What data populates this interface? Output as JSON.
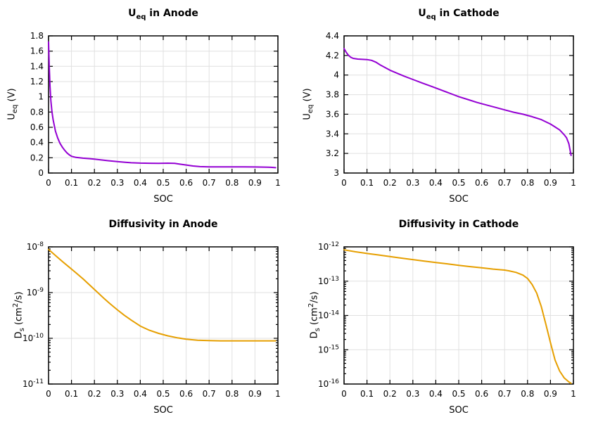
{
  "page": {
    "background": "#ffffff",
    "text_color": "#000000"
  },
  "style": {
    "grid_color": "#e0e0e0",
    "axis_color": "#000000",
    "purple": "#9400d3",
    "orange": "#e69f00"
  },
  "chart_data": [
    {
      "id": "ueq-anode",
      "type": "line",
      "title": {
        "base": "U",
        "sub": "eq",
        "rest": " in Anode"
      },
      "xlabel": "SOC",
      "ylabel": {
        "base": "U",
        "sub": "eq",
        "mid": " (V)",
        "sup": "",
        "end": ""
      },
      "x_range": [
        0,
        1
      ],
      "y_range": [
        0,
        1.8
      ],
      "y_scale": "linear",
      "grid": true,
      "line_color": "#9400d3",
      "x_ticks": [
        {
          "v": 0,
          "label": "0"
        },
        {
          "v": 0.1,
          "label": "0.1"
        },
        {
          "v": 0.2,
          "label": "0.2"
        },
        {
          "v": 0.3,
          "label": "0.3"
        },
        {
          "v": 0.4,
          "label": "0.4"
        },
        {
          "v": 0.5,
          "label": "0.5"
        },
        {
          "v": 0.6,
          "label": "0.6"
        },
        {
          "v": 0.7,
          "label": "0.7"
        },
        {
          "v": 0.8,
          "label": "0.8"
        },
        {
          "v": 0.9,
          "label": "0.9"
        },
        {
          "v": 1,
          "label": "1"
        }
      ],
      "y_ticks": [
        {
          "v": 0,
          "label": "0"
        },
        {
          "v": 0.2,
          "label": "0.2"
        },
        {
          "v": 0.4,
          "label": "0.4"
        },
        {
          "v": 0.6,
          "label": "0.6"
        },
        {
          "v": 0.8,
          "label": "0.8"
        },
        {
          "v": 1,
          "label": "1"
        },
        {
          "v": 1.2,
          "label": "1.2"
        },
        {
          "v": 1.4,
          "label": "1.4"
        },
        {
          "v": 1.6,
          "label": "1.6"
        },
        {
          "v": 1.8,
          "label": "1.8"
        }
      ],
      "series": [
        {
          "name": "Ueq anode",
          "x": [
            0,
            0.003,
            0.006,
            0.01,
            0.015,
            0.02,
            0.03,
            0.04,
            0.05,
            0.06,
            0.07,
            0.08,
            0.09,
            0.1,
            0.12,
            0.15,
            0.18,
            0.2,
            0.23,
            0.26,
            0.3,
            0.33,
            0.36,
            0.4,
            0.44,
            0.48,
            0.52,
            0.55,
            0.57,
            0.6,
            0.63,
            0.66,
            0.7,
            0.75,
            0.8,
            0.85,
            0.9,
            0.94,
            0.97,
            0.99
          ],
          "y": [
            1.72,
            1.4,
            1.15,
            0.95,
            0.8,
            0.7,
            0.55,
            0.46,
            0.39,
            0.34,
            0.3,
            0.265,
            0.24,
            0.22,
            0.205,
            0.195,
            0.188,
            0.183,
            0.172,
            0.162,
            0.15,
            0.142,
            0.135,
            0.13,
            0.128,
            0.127,
            0.129,
            0.127,
            0.118,
            0.105,
            0.092,
            0.084,
            0.081,
            0.08,
            0.08,
            0.08,
            0.079,
            0.078,
            0.075,
            0.07
          ]
        }
      ]
    },
    {
      "id": "ueq-cathode",
      "type": "line",
      "title": {
        "base": "U",
        "sub": "eq",
        "rest": " in Cathode"
      },
      "xlabel": "SOC",
      "ylabel": {
        "base": "U",
        "sub": "eq",
        "mid": " (V)",
        "sup": "",
        "end": ""
      },
      "x_range": [
        0,
        1
      ],
      "y_range": [
        3,
        4.4
      ],
      "y_scale": "linear",
      "grid": true,
      "line_color": "#9400d3",
      "x_ticks": [
        {
          "v": 0,
          "label": "0"
        },
        {
          "v": 0.1,
          "label": "0.1"
        },
        {
          "v": 0.2,
          "label": "0.2"
        },
        {
          "v": 0.3,
          "label": "0.3"
        },
        {
          "v": 0.4,
          "label": "0.4"
        },
        {
          "v": 0.5,
          "label": "0.5"
        },
        {
          "v": 0.6,
          "label": "0.6"
        },
        {
          "v": 0.7,
          "label": "0.7"
        },
        {
          "v": 0.8,
          "label": "0.8"
        },
        {
          "v": 0.9,
          "label": "0.9"
        },
        {
          "v": 1,
          "label": "1"
        }
      ],
      "y_ticks": [
        {
          "v": 3,
          "label": "3"
        },
        {
          "v": 3.2,
          "label": "3.2"
        },
        {
          "v": 3.4,
          "label": "3.4"
        },
        {
          "v": 3.6,
          "label": "3.6"
        },
        {
          "v": 3.8,
          "label": "3.8"
        },
        {
          "v": 4,
          "label": "4"
        },
        {
          "v": 4.2,
          "label": "4.2"
        },
        {
          "v": 4.4,
          "label": "4.4"
        }
      ],
      "series": [
        {
          "name": "Ueq cathode",
          "x": [
            0,
            0.01,
            0.02,
            0.03,
            0.04,
            0.06,
            0.08,
            0.1,
            0.12,
            0.14,
            0.16,
            0.18,
            0.2,
            0.23,
            0.26,
            0.3,
            0.34,
            0.38,
            0.42,
            0.46,
            0.5,
            0.54,
            0.58,
            0.62,
            0.66,
            0.7,
            0.74,
            0.78,
            0.82,
            0.86,
            0.9,
            0.92,
            0.94,
            0.96,
            0.97,
            0.98,
            0.99
          ],
          "y": [
            4.27,
            4.23,
            4.2,
            4.18,
            4.17,
            4.163,
            4.16,
            4.158,
            4.15,
            4.13,
            4.1,
            4.075,
            4.05,
            4.02,
            3.99,
            3.955,
            3.92,
            3.885,
            3.85,
            3.815,
            3.78,
            3.75,
            3.72,
            3.695,
            3.67,
            3.645,
            3.62,
            3.6,
            3.575,
            3.545,
            3.5,
            3.47,
            3.44,
            3.39,
            3.36,
            3.3,
            3.18
          ]
        }
      ]
    },
    {
      "id": "ds-anode",
      "type": "line",
      "title": {
        "base": "Diffusivity in Anode",
        "sub": "",
        "rest": ""
      },
      "xlabel": "SOC",
      "ylabel": {
        "base": "D",
        "sub": "s",
        "mid": " (cm",
        "sup": "2",
        "end": "/s)"
      },
      "x_range": [
        0,
        1
      ],
      "y_range": [
        1e-11,
        1e-08
      ],
      "y_scale": "log",
      "grid": true,
      "line_color": "#e69f00",
      "x_ticks": [
        {
          "v": 0,
          "label": "0"
        },
        {
          "v": 0.1,
          "label": "0.1"
        },
        {
          "v": 0.2,
          "label": "0.2"
        },
        {
          "v": 0.3,
          "label": "0.3"
        },
        {
          "v": 0.4,
          "label": "0.4"
        },
        {
          "v": 0.5,
          "label": "0.5"
        },
        {
          "v": 0.6,
          "label": "0.6"
        },
        {
          "v": 0.7,
          "label": "0.7"
        },
        {
          "v": 0.8,
          "label": "0.8"
        },
        {
          "v": 0.9,
          "label": "0.9"
        },
        {
          "v": 1,
          "label": "1"
        }
      ],
      "y_ticks": [
        {
          "v": 1e-11,
          "base": "10",
          "sup": "-11"
        },
        {
          "v": 1e-10,
          "base": "10",
          "sup": "-10"
        },
        {
          "v": 1e-09,
          "base": "10",
          "sup": "-9"
        },
        {
          "v": 1e-08,
          "base": "10",
          "sup": "-8"
        }
      ],
      "series": [
        {
          "name": "Ds anode",
          "x": [
            0,
            0.03,
            0.06,
            0.09,
            0.12,
            0.15,
            0.18,
            0.21,
            0.24,
            0.27,
            0.3,
            0.33,
            0.36,
            0.4,
            0.44,
            0.48,
            0.52,
            0.56,
            0.6,
            0.65,
            0.7,
            0.75,
            0.8,
            0.85,
            0.9,
            0.95,
            0.99
          ],
          "y": [
            8.8e-09,
            6.5e-09,
            4.8e-09,
            3.6e-09,
            2.7e-09,
            2e-09,
            1.45e-09,
            1.05e-09,
            7.6e-10,
            5.6e-10,
            4.2e-10,
            3.2e-10,
            2.5e-10,
            1.85e-10,
            1.5e-10,
            1.28e-10,
            1.13e-10,
            1.03e-10,
            9.6e-11,
            9.1e-11,
            8.9e-11,
            8.8e-11,
            8.8e-11,
            8.8e-11,
            8.8e-11,
            8.8e-11,
            8.8e-11
          ]
        }
      ]
    },
    {
      "id": "ds-cathode",
      "type": "line",
      "title": {
        "base": "Diffusivity in Cathode",
        "sub": "",
        "rest": ""
      },
      "xlabel": "SOC",
      "ylabel": {
        "base": "D",
        "sub": "s",
        "mid": " (cm",
        "sup": "2",
        "end": "/s)"
      },
      "x_range": [
        0,
        1
      ],
      "y_range": [
        1e-16,
        1e-12
      ],
      "y_scale": "log",
      "grid": true,
      "line_color": "#e69f00",
      "x_ticks": [
        {
          "v": 0,
          "label": "0"
        },
        {
          "v": 0.1,
          "label": "0.1"
        },
        {
          "v": 0.2,
          "label": "0.2"
        },
        {
          "v": 0.3,
          "label": "0.3"
        },
        {
          "v": 0.4,
          "label": "0.4"
        },
        {
          "v": 0.5,
          "label": "0.5"
        },
        {
          "v": 0.6,
          "label": "0.6"
        },
        {
          "v": 0.7,
          "label": "0.7"
        },
        {
          "v": 0.8,
          "label": "0.8"
        },
        {
          "v": 0.9,
          "label": "0.9"
        },
        {
          "v": 1,
          "label": "1"
        }
      ],
      "y_ticks": [
        {
          "v": 1e-16,
          "base": "10",
          "sup": "-16"
        },
        {
          "v": 1e-15,
          "base": "10",
          "sup": "-15"
        },
        {
          "v": 1e-14,
          "base": "10",
          "sup": "-14"
        },
        {
          "v": 1e-13,
          "base": "10",
          "sup": "-13"
        },
        {
          "v": 1e-12,
          "base": "10",
          "sup": "-12"
        }
      ],
      "series": [
        {
          "name": "Ds cathode",
          "x": [
            0,
            0.05,
            0.1,
            0.15,
            0.2,
            0.25,
            0.3,
            0.35,
            0.4,
            0.45,
            0.5,
            0.55,
            0.6,
            0.65,
            0.7,
            0.72,
            0.75,
            0.78,
            0.8,
            0.82,
            0.84,
            0.86,
            0.88,
            0.9,
            0.92,
            0.94,
            0.96,
            0.98,
            0.99
          ],
          "y": [
            8.2e-13,
            7.2e-13,
            6.4e-13,
            5.8e-13,
            5.2e-13,
            4.7e-13,
            4.25e-13,
            3.85e-13,
            3.5e-13,
            3.2e-13,
            2.9e-13,
            2.65e-13,
            2.45e-13,
            2.25e-13,
            2.1e-13,
            2e-13,
            1.8e-13,
            1.5e-13,
            1.2e-13,
            8e-14,
            4.5e-14,
            1.8e-14,
            5.5e-15,
            1.6e-15,
            5e-16,
            2.4e-16,
            1.5e-16,
            1.15e-16,
            1.05e-16
          ]
        }
      ]
    }
  ]
}
